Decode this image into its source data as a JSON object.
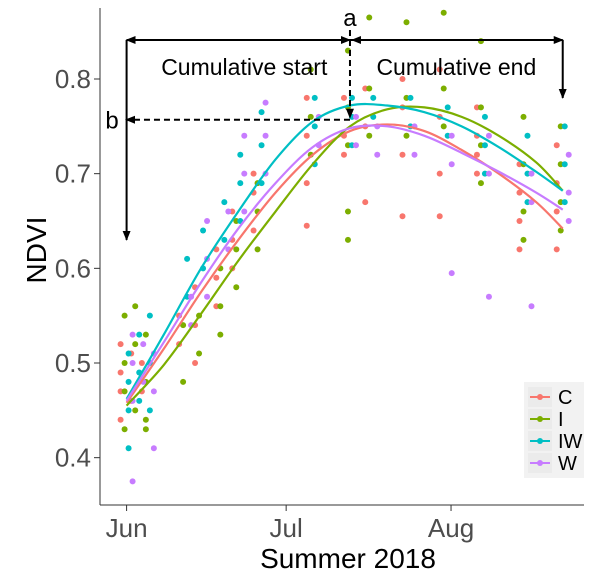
{
  "chart_data": {
    "type": "scatter",
    "xlabel": "Summer 2018",
    "ylabel": "NDVI",
    "x_ticks": [
      "Jun",
      "Jul",
      "Aug"
    ],
    "x_tick_dates": [
      "2018-06-01",
      "2018-07-01",
      "2018-08-01"
    ],
    "xlim": [
      "2018-05-27",
      "2018-08-26"
    ],
    "ylim": [
      0.35,
      0.875
    ],
    "y_ticks": [
      0.4,
      0.5,
      0.6,
      0.7,
      0.8
    ],
    "y_tick_labels": [
      "0.4",
      "0.5",
      "0.6",
      "0.7",
      "0.8"
    ],
    "grid": false,
    "legend_position": "bottom-right",
    "annotations": {
      "a_label": "a",
      "b_label": "b",
      "start_label": "Cumulative start",
      "end_label": "Cumulative end",
      "peak_date": "2018-07-13",
      "peak_value": 0.757,
      "start_date": "2018-06-01",
      "end_date": "2018-08-22"
    },
    "series": [
      {
        "name": "C",
        "color": "#F8766D",
        "fit": [
          [
            "2018-06-01",
            0.458
          ],
          [
            "2018-06-08",
            0.515
          ],
          [
            "2018-06-15",
            0.575
          ],
          [
            "2018-06-22",
            0.63
          ],
          [
            "2018-06-29",
            0.68
          ],
          [
            "2018-07-06",
            0.72
          ],
          [
            "2018-07-13",
            0.745
          ],
          [
            "2018-07-20",
            0.752
          ],
          [
            "2018-07-27",
            0.745
          ],
          [
            "2018-08-03",
            0.725
          ],
          [
            "2018-08-10",
            0.7
          ],
          [
            "2018-08-17",
            0.67
          ],
          [
            "2018-08-22",
            0.642
          ]
        ],
        "points": [
          [
            "2018-06-01",
            0.52
          ],
          [
            "2018-06-01",
            0.49
          ],
          [
            "2018-06-01",
            0.47
          ],
          [
            "2018-06-01",
            0.44
          ],
          [
            "2018-06-03",
            0.51
          ],
          [
            "2018-06-03",
            0.46
          ],
          [
            "2018-06-05",
            0.5
          ],
          [
            "2018-06-05",
            0.47
          ],
          [
            "2018-06-12",
            0.55
          ],
          [
            "2018-06-12",
            0.52
          ],
          [
            "2018-06-15",
            0.58
          ],
          [
            "2018-06-15",
            0.54
          ],
          [
            "2018-06-15",
            0.5
          ],
          [
            "2018-06-19",
            0.62
          ],
          [
            "2018-06-19",
            0.59
          ],
          [
            "2018-06-19",
            0.56
          ],
          [
            "2018-06-22",
            0.66
          ],
          [
            "2018-06-22",
            0.63
          ],
          [
            "2018-06-22",
            0.6
          ],
          [
            "2018-06-26",
            0.7
          ],
          [
            "2018-06-26",
            0.68
          ],
          [
            "2018-06-26",
            0.64
          ],
          [
            "2018-07-06",
            0.78
          ],
          [
            "2018-07-06",
            0.74
          ],
          [
            "2018-07-06",
            0.69
          ],
          [
            "2018-07-06",
            0.645
          ],
          [
            "2018-07-13",
            0.78
          ],
          [
            "2018-07-13",
            0.74
          ],
          [
            "2018-07-13",
            0.72
          ],
          [
            "2018-07-17",
            0.79
          ],
          [
            "2018-07-17",
            0.75
          ],
          [
            "2018-07-17",
            0.67
          ],
          [
            "2018-07-24",
            0.8
          ],
          [
            "2018-07-24",
            0.77
          ],
          [
            "2018-07-24",
            0.72
          ],
          [
            "2018-07-24",
            0.655
          ],
          [
            "2018-07-31",
            0.81
          ],
          [
            "2018-07-31",
            0.76
          ],
          [
            "2018-07-31",
            0.7
          ],
          [
            "2018-07-31",
            0.655
          ],
          [
            "2018-08-07",
            0.77
          ],
          [
            "2018-08-07",
            0.74
          ],
          [
            "2018-08-07",
            0.72
          ],
          [
            "2018-08-07",
            0.7
          ],
          [
            "2018-08-15",
            0.71
          ],
          [
            "2018-08-15",
            0.68
          ],
          [
            "2018-08-15",
            0.65
          ],
          [
            "2018-08-15",
            0.62
          ],
          [
            "2018-08-22",
            0.73
          ],
          [
            "2018-08-22",
            0.69
          ],
          [
            "2018-08-22",
            0.66
          ],
          [
            "2018-08-22",
            0.62
          ]
        ]
      },
      {
        "name": "I",
        "color": "#7CAE00",
        "fit": [
          [
            "2018-06-01",
            0.455
          ],
          [
            "2018-06-08",
            0.498
          ],
          [
            "2018-06-15",
            0.552
          ],
          [
            "2018-06-22",
            0.608
          ],
          [
            "2018-06-29",
            0.66
          ],
          [
            "2018-07-06",
            0.71
          ],
          [
            "2018-07-13",
            0.75
          ],
          [
            "2018-07-20",
            0.768
          ],
          [
            "2018-07-27",
            0.77
          ],
          [
            "2018-08-03",
            0.76
          ],
          [
            "2018-08-10",
            0.74
          ],
          [
            "2018-08-17",
            0.712
          ],
          [
            "2018-08-22",
            0.682
          ]
        ],
        "points": [
          [
            "2018-06-01",
            0.55
          ],
          [
            "2018-06-01",
            0.5
          ],
          [
            "2018-06-01",
            0.47
          ],
          [
            "2018-06-01",
            0.43
          ],
          [
            "2018-06-03",
            0.56
          ],
          [
            "2018-06-03",
            0.52
          ],
          [
            "2018-06-03",
            0.45
          ],
          [
            "2018-06-05",
            0.53
          ],
          [
            "2018-06-05",
            0.48
          ],
          [
            "2018-06-05",
            0.44
          ],
          [
            "2018-06-05",
            0.43
          ],
          [
            "2018-06-12",
            0.54
          ],
          [
            "2018-06-12",
            0.48
          ],
          [
            "2018-06-15",
            0.55
          ],
          [
            "2018-06-15",
            0.51
          ],
          [
            "2018-06-19",
            0.6
          ],
          [
            "2018-06-19",
            0.56
          ],
          [
            "2018-06-19",
            0.53
          ],
          [
            "2018-06-22",
            0.65
          ],
          [
            "2018-06-22",
            0.62
          ],
          [
            "2018-06-22",
            0.58
          ],
          [
            "2018-06-26",
            0.69
          ],
          [
            "2018-06-26",
            0.66
          ],
          [
            "2018-06-26",
            0.62
          ],
          [
            "2018-07-06",
            0.81
          ],
          [
            "2018-07-06",
            0.76
          ],
          [
            "2018-07-06",
            0.72
          ],
          [
            "2018-07-13",
            0.83
          ],
          [
            "2018-07-13",
            0.77
          ],
          [
            "2018-07-13",
            0.73
          ],
          [
            "2018-07-13",
            0.66
          ],
          [
            "2018-07-13",
            0.63
          ],
          [
            "2018-07-17",
            0.865
          ],
          [
            "2018-07-17",
            0.79
          ],
          [
            "2018-07-17",
            0.74
          ],
          [
            "2018-07-24",
            0.86
          ],
          [
            "2018-07-24",
            0.78
          ],
          [
            "2018-07-24",
            0.74
          ],
          [
            "2018-07-31",
            0.87
          ],
          [
            "2018-07-31",
            0.79
          ],
          [
            "2018-07-31",
            0.75
          ],
          [
            "2018-08-07",
            0.84
          ],
          [
            "2018-08-07",
            0.77
          ],
          [
            "2018-08-07",
            0.73
          ],
          [
            "2018-08-07",
            0.69
          ],
          [
            "2018-08-15",
            0.76
          ],
          [
            "2018-08-15",
            0.71
          ],
          [
            "2018-08-15",
            0.66
          ],
          [
            "2018-08-15",
            0.63
          ],
          [
            "2018-08-22",
            0.75
          ],
          [
            "2018-08-22",
            0.71
          ],
          [
            "2018-08-22",
            0.67
          ],
          [
            "2018-08-22",
            0.64
          ]
        ]
      },
      {
        "name": "IW",
        "color": "#00BFC4",
        "fit": [
          [
            "2018-06-01",
            0.462
          ],
          [
            "2018-06-08",
            0.53
          ],
          [
            "2018-06-15",
            0.6
          ],
          [
            "2018-06-22",
            0.66
          ],
          [
            "2018-06-29",
            0.715
          ],
          [
            "2018-07-06",
            0.755
          ],
          [
            "2018-07-13",
            0.772
          ],
          [
            "2018-07-20",
            0.772
          ],
          [
            "2018-07-27",
            0.765
          ],
          [
            "2018-08-03",
            0.75
          ],
          [
            "2018-08-10",
            0.728
          ],
          [
            "2018-08-17",
            0.702
          ],
          [
            "2018-08-22",
            0.682
          ]
        ],
        "points": [
          [
            "2018-06-01",
            0.51
          ],
          [
            "2018-06-01",
            0.48
          ],
          [
            "2018-06-01",
            0.45
          ],
          [
            "2018-06-01",
            0.41
          ],
          [
            "2018-06-03",
            0.53
          ],
          [
            "2018-06-03",
            0.49
          ],
          [
            "2018-06-03",
            0.46
          ],
          [
            "2018-06-05",
            0.55
          ],
          [
            "2018-06-05",
            0.5
          ],
          [
            "2018-06-05",
            0.45
          ],
          [
            "2018-06-12",
            0.61
          ],
          [
            "2018-06-12",
            0.57
          ],
          [
            "2018-06-15",
            0.64
          ],
          [
            "2018-06-15",
            0.6
          ],
          [
            "2018-06-19",
            0.67
          ],
          [
            "2018-06-19",
            0.63
          ],
          [
            "2018-06-22",
            0.72
          ],
          [
            "2018-06-22",
            0.69
          ],
          [
            "2018-06-22",
            0.65
          ],
          [
            "2018-06-26",
            0.765
          ],
          [
            "2018-06-26",
            0.73
          ],
          [
            "2018-06-26",
            0.69
          ],
          [
            "2018-07-06",
            0.78
          ],
          [
            "2018-07-06",
            0.75
          ],
          [
            "2018-07-06",
            0.71
          ],
          [
            "2018-07-13",
            0.78
          ],
          [
            "2018-07-13",
            0.76
          ],
          [
            "2018-07-13",
            0.73
          ],
          [
            "2018-07-17",
            0.78
          ],
          [
            "2018-07-17",
            0.76
          ],
          [
            "2018-07-24",
            0.78
          ],
          [
            "2018-07-24",
            0.75
          ],
          [
            "2018-07-31",
            0.77
          ],
          [
            "2018-07-31",
            0.74
          ],
          [
            "2018-08-07",
            0.76
          ],
          [
            "2018-08-07",
            0.73
          ],
          [
            "2018-08-07",
            0.7
          ],
          [
            "2018-08-15",
            0.74
          ],
          [
            "2018-08-15",
            0.7
          ],
          [
            "2018-08-15",
            0.67
          ],
          [
            "2018-08-22",
            0.75
          ],
          [
            "2018-08-22",
            0.71
          ],
          [
            "2018-08-22",
            0.67
          ]
        ]
      },
      {
        "name": "W",
        "color": "#C77CFF",
        "fit": [
          [
            "2018-06-01",
            0.46
          ],
          [
            "2018-06-08",
            0.522
          ],
          [
            "2018-06-15",
            0.585
          ],
          [
            "2018-06-22",
            0.642
          ],
          [
            "2018-06-29",
            0.69
          ],
          [
            "2018-07-06",
            0.728
          ],
          [
            "2018-07-13",
            0.748
          ],
          [
            "2018-07-20",
            0.75
          ],
          [
            "2018-07-27",
            0.74
          ],
          [
            "2018-08-03",
            0.722
          ],
          [
            "2018-08-10",
            0.702
          ],
          [
            "2018-08-17",
            0.68
          ],
          [
            "2018-08-22",
            0.662
          ]
        ],
        "points": [
          [
            "2018-06-01",
            0.53
          ],
          [
            "2018-06-01",
            0.5
          ],
          [
            "2018-06-01",
            0.46
          ],
          [
            "2018-06-01",
            0.375
          ],
          [
            "2018-06-03",
            0.52
          ],
          [
            "2018-06-03",
            0.48
          ],
          [
            "2018-06-05",
            0.51
          ],
          [
            "2018-06-05",
            0.47
          ],
          [
            "2018-06-05",
            0.41
          ],
          [
            "2018-06-12",
            0.57
          ],
          [
            "2018-06-12",
            0.54
          ],
          [
            "2018-06-15",
            0.65
          ],
          [
            "2018-06-15",
            0.61
          ],
          [
            "2018-06-15",
            0.57
          ],
          [
            "2018-06-19",
            0.66
          ],
          [
            "2018-06-19",
            0.62
          ],
          [
            "2018-06-22",
            0.74
          ],
          [
            "2018-06-22",
            0.7
          ],
          [
            "2018-06-22",
            0.66
          ],
          [
            "2018-06-26",
            0.775
          ],
          [
            "2018-06-26",
            0.74
          ],
          [
            "2018-06-26",
            0.7
          ],
          [
            "2018-07-06",
            0.76
          ],
          [
            "2018-07-06",
            0.73
          ],
          [
            "2018-07-13",
            0.76
          ],
          [
            "2018-07-13",
            0.73
          ],
          [
            "2018-07-17",
            0.75
          ],
          [
            "2018-07-17",
            0.72
          ],
          [
            "2018-07-24",
            0.75
          ],
          [
            "2018-07-24",
            0.72
          ],
          [
            "2018-07-31",
            0.74
          ],
          [
            "2018-07-31",
            0.71
          ],
          [
            "2018-07-31",
            0.595
          ],
          [
            "2018-08-07",
            0.74
          ],
          [
            "2018-08-07",
            0.7
          ],
          [
            "2018-08-07",
            0.57
          ],
          [
            "2018-08-15",
            0.7
          ],
          [
            "2018-08-15",
            0.67
          ],
          [
            "2018-08-15",
            0.56
          ],
          [
            "2018-08-22",
            0.72
          ],
          [
            "2018-08-22",
            0.68
          ],
          [
            "2018-08-22",
            0.65
          ]
        ]
      }
    ]
  }
}
